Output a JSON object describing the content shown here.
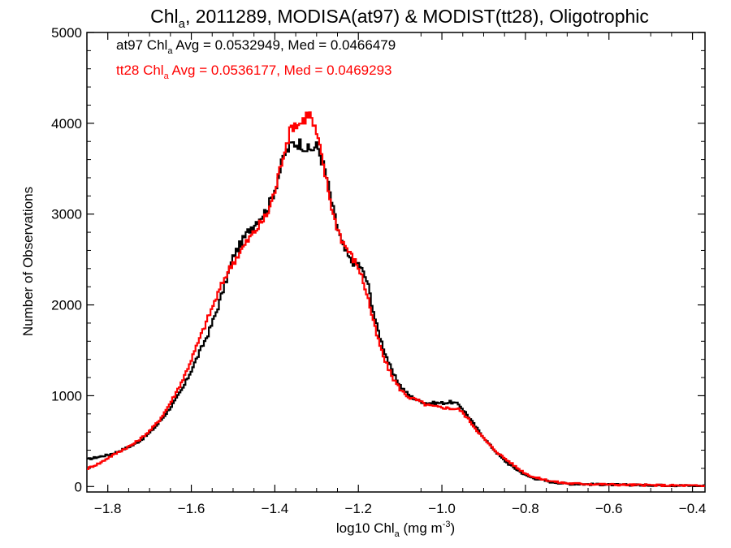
{
  "chart_data": {
    "type": "line",
    "title": {
      "main": "Chl",
      "sub": "a",
      "rest": ", 2011289, MODISA(at97) & MODIST(tt28), Oligotrophic"
    },
    "xlabel": {
      "pre": "log10 Chl",
      "sub": "a",
      "mid": " (mg m",
      "sup": "-3",
      "post": ")"
    },
    "ylabel": "Number of Observations",
    "xlim": [
      -1.85,
      -0.37
    ],
    "ylim": [
      -60,
      5000
    ],
    "xticks": [
      -1.8,
      -1.6,
      -1.4,
      -1.2,
      -1.0,
      -0.8,
      -0.6,
      -0.4
    ],
    "xtick_labels": [
      "−1.8",
      "−1.6",
      "−1.4",
      "−1.2",
      "−1.0",
      "−0.8",
      "−0.6",
      "−0.4"
    ],
    "yticks": [
      0,
      1000,
      2000,
      3000,
      4000,
      5000
    ],
    "ytick_labels": [
      "0",
      "1000",
      "2000",
      "3000",
      "4000",
      "5000"
    ],
    "grid": false,
    "legend_placement": "top-left",
    "annotations": [
      {
        "pre": "at97 Chl",
        "sub": "a",
        "post": " Avg = 0.0532949, Med = 0.0466479",
        "color": "#000000"
      },
      {
        "pre": "tt28 Chl",
        "sub": "a",
        "post": " Avg = 0.0536177, Med = 0.0469293",
        "color": "#ff0000"
      }
    ],
    "series": [
      {
        "color": "#000000",
        "x": [
          -1.85,
          -1.82,
          -1.8,
          -1.78,
          -1.76,
          -1.74,
          -1.72,
          -1.7,
          -1.68,
          -1.66,
          -1.64,
          -1.62,
          -1.6,
          -1.58,
          -1.56,
          -1.54,
          -1.52,
          -1.5,
          -1.48,
          -1.46,
          -1.44,
          -1.42,
          -1.4,
          -1.38,
          -1.36,
          -1.34,
          -1.32,
          -1.3,
          -1.28,
          -1.26,
          -1.24,
          -1.22,
          -1.2,
          -1.18,
          -1.16,
          -1.14,
          -1.12,
          -1.1,
          -1.08,
          -1.06,
          -1.04,
          -1.02,
          -1.0,
          -0.98,
          -0.96,
          -0.94,
          -0.92,
          -0.9,
          -0.88,
          -0.86,
          -0.84,
          -0.82,
          -0.8,
          -0.78,
          -0.76,
          -0.74,
          -0.72,
          -0.7,
          -0.65,
          -0.6,
          -0.55,
          -0.5,
          -0.45,
          -0.4,
          -0.37
        ],
        "y": [
          300,
          330,
          350,
          380,
          420,
          460,
          520,
          600,
          700,
          820,
          950,
          1100,
          1300,
          1500,
          1700,
          1950,
          2250,
          2550,
          2700,
          2850,
          2950,
          3050,
          3300,
          3650,
          3780,
          3780,
          3700,
          3750,
          3450,
          3000,
          2650,
          2480,
          2450,
          2250,
          1800,
          1500,
          1250,
          1100,
          1000,
          950,
          920,
          920,
          920,
          930,
          900,
          780,
          650,
          530,
          420,
          320,
          240,
          180,
          120,
          90,
          70,
          50,
          40,
          30,
          25,
          20,
          18,
          15,
          12,
          10,
          8
        ]
      },
      {
        "color": "#ff0000",
        "x": [
          -1.85,
          -1.82,
          -1.8,
          -1.78,
          -1.76,
          -1.74,
          -1.72,
          -1.7,
          -1.68,
          -1.66,
          -1.64,
          -1.62,
          -1.6,
          -1.58,
          -1.56,
          -1.54,
          -1.52,
          -1.5,
          -1.48,
          -1.46,
          -1.44,
          -1.42,
          -1.4,
          -1.38,
          -1.36,
          -1.34,
          -1.32,
          -1.3,
          -1.28,
          -1.26,
          -1.24,
          -1.22,
          -1.2,
          -1.18,
          -1.16,
          -1.14,
          -1.12,
          -1.1,
          -1.08,
          -1.06,
          -1.04,
          -1.02,
          -1.0,
          -0.98,
          -0.96,
          -0.94,
          -0.92,
          -0.9,
          -0.88,
          -0.86,
          -0.84,
          -0.82,
          -0.8,
          -0.78,
          -0.76,
          -0.74,
          -0.72,
          -0.7,
          -0.65,
          -0.6,
          -0.55,
          -0.5,
          -0.45,
          -0.4,
          -0.37
        ],
        "y": [
          200,
          260,
          320,
          370,
          420,
          470,
          540,
          620,
          720,
          860,
          1020,
          1200,
          1420,
          1650,
          1880,
          2100,
          2320,
          2480,
          2620,
          2750,
          2870,
          3000,
          3280,
          3700,
          3980,
          4000,
          4120,
          3850,
          3400,
          2950,
          2700,
          2550,
          2400,
          2100,
          1700,
          1400,
          1200,
          1060,
          980,
          950,
          900,
          880,
          870,
          860,
          850,
          750,
          630,
          520,
          420,
          340,
          270,
          200,
          140,
          100,
          80,
          60,
          45,
          35,
          28,
          22,
          18,
          15,
          12,
          10,
          6
        ]
      }
    ]
  }
}
